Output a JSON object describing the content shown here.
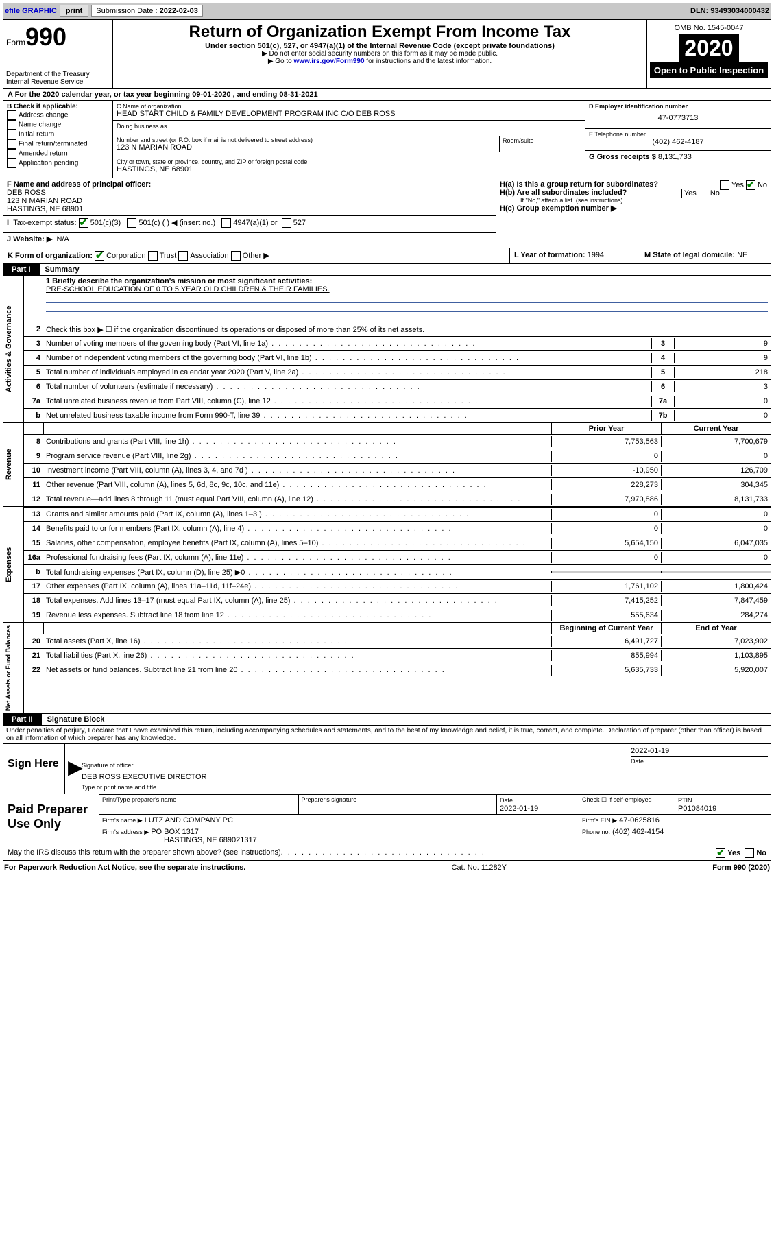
{
  "colors": {
    "link": "#0000cc",
    "check": "#008000",
    "rule": "#4060a0"
  },
  "topbar": {
    "efile_link": "efile GRAPHIC",
    "print_btn": "print",
    "sub_date_label": "Submission Date :",
    "sub_date": "2022-02-03",
    "dln_label": "DLN:",
    "dln": "93493034000432"
  },
  "header": {
    "form_label": "Form",
    "form_num": "990",
    "dept": "Department of the Treasury",
    "irs": "Internal Revenue Service",
    "title": "Return of Organization Exempt From Income Tax",
    "sub1": "Under section 501(c), 527, or 4947(a)(1) of the Internal Revenue Code (except private foundations)",
    "sub2": "▶ Do not enter social security numbers on this form as it may be made public.",
    "sub3_pre": "▶ Go to ",
    "sub3_link": "www.irs.gov/Form990",
    "sub3_post": " for instructions and the latest information.",
    "omb": "OMB No. 1545-0047",
    "year": "2020",
    "open": "Open to Public Inspection"
  },
  "rowA": "A   For the 2020 calendar year, or tax year beginning 09-01-2020    , and ending 08-31-2021",
  "colB": {
    "title": "B Check if applicable:",
    "items": [
      "Address change",
      "Name change",
      "Initial return",
      "Final return/terminated",
      "Amended return",
      "Application pending"
    ]
  },
  "colC": {
    "name_label": "C Name of organization",
    "name": "HEAD START CHILD & FAMILY DEVELOPMENT PROGRAM INC C/O DEB ROSS",
    "dba_label": "Doing business as",
    "dba": "",
    "addr_label": "Number and street (or P.O. box if mail is not delivered to street address)",
    "room_label": "Room/suite",
    "addr": "123 N MARIAN ROAD",
    "city_label": "City or town, state or province, country, and ZIP or foreign postal code",
    "city": "HASTINGS, NE  68901"
  },
  "colD": {
    "ein_label": "D Employer identification number",
    "ein": "47-0773713",
    "phone_label": "E Telephone number",
    "phone": "(402) 462-4187",
    "gross_label": "G Gross receipts $",
    "gross": "8,131,733"
  },
  "colF": {
    "label": "F  Name and address of principal officer:",
    "name": "DEB ROSS",
    "addr1": "123 N MARIAN ROAD",
    "addr2": "HASTINGS, NE  68901"
  },
  "rowH": {
    "ha": "H(a)  Is this a group return for subordinates?",
    "hb": "H(b)  Are all subordinates included?",
    "hb_note": "If \"No,\" attach a list. (see instructions)",
    "hc": "H(c)  Group exemption number ▶",
    "yes": "Yes",
    "no": "No"
  },
  "rowI": {
    "label": "Tax-exempt status:",
    "c3": "501(c)(3)",
    "c": "501(c) (  ) ◀ (insert no.)",
    "a1": "4947(a)(1) or",
    "s527": "527"
  },
  "rowJ": {
    "label": "J   Website: ▶",
    "val": "N/A"
  },
  "rowK": {
    "label": "K Form of organization:",
    "corp": "Corporation",
    "trust": "Trust",
    "assoc": "Association",
    "other": "Other ▶"
  },
  "rowL": {
    "label": "L Year of formation:",
    "val": "1994"
  },
  "rowM": {
    "label": "M State of legal domicile:",
    "val": "NE"
  },
  "part1": {
    "tag": "Part I",
    "title": "Summary"
  },
  "summary": {
    "q1_label": "1   Briefly describe the organization's mission or most significant activities:",
    "q1_val": "PRE-SCHOOL EDUCATION OF 0 TO 5 YEAR OLD CHILDREN & THEIR FAMILIES.",
    "q2": "Check this box ▶ ☐  if the organization discontinued its operations or disposed of more than 25% of its net assets.",
    "lines_ag": [
      {
        "n": "3",
        "t": "Number of voting members of the governing body (Part VI, line 1a)",
        "r": "3",
        "v": "9"
      },
      {
        "n": "4",
        "t": "Number of independent voting members of the governing body (Part VI, line 1b)",
        "r": "4",
        "v": "9"
      },
      {
        "n": "5",
        "t": "Total number of individuals employed in calendar year 2020 (Part V, line 2a)",
        "r": "5",
        "v": "218"
      },
      {
        "n": "6",
        "t": "Total number of volunteers (estimate if necessary)",
        "r": "6",
        "v": "3"
      },
      {
        "n": "7a",
        "t": "Total unrelated business revenue from Part VIII, column (C), line 12",
        "r": "7a",
        "v": "0"
      },
      {
        "n": "b",
        "t": "Net unrelated business taxable income from Form 990-T, line 39",
        "r": "7b",
        "v": "0"
      }
    ]
  },
  "revhead": {
    "prior": "Prior Year",
    "current": "Current Year"
  },
  "revenue": [
    {
      "n": "8",
      "t": "Contributions and grants (Part VIII, line 1h)",
      "p": "7,753,563",
      "c": "7,700,679"
    },
    {
      "n": "9",
      "t": "Program service revenue (Part VIII, line 2g)",
      "p": "0",
      "c": "0"
    },
    {
      "n": "10",
      "t": "Investment income (Part VIII, column (A), lines 3, 4, and 7d )",
      "p": "-10,950",
      "c": "126,709"
    },
    {
      "n": "11",
      "t": "Other revenue (Part VIII, column (A), lines 5, 6d, 8c, 9c, 10c, and 11e)",
      "p": "228,273",
      "c": "304,345"
    },
    {
      "n": "12",
      "t": "Total revenue—add lines 8 through 11 (must equal Part VIII, column (A), line 12)",
      "p": "7,970,886",
      "c": "8,131,733"
    }
  ],
  "expenses": [
    {
      "n": "13",
      "t": "Grants and similar amounts paid (Part IX, column (A), lines 1–3 )",
      "p": "0",
      "c": "0"
    },
    {
      "n": "14",
      "t": "Benefits paid to or for members (Part IX, column (A), line 4)",
      "p": "0",
      "c": "0"
    },
    {
      "n": "15",
      "t": "Salaries, other compensation, employee benefits (Part IX, column (A), lines 5–10)",
      "p": "5,654,150",
      "c": "6,047,035"
    },
    {
      "n": "16a",
      "t": "Professional fundraising fees (Part IX, column (A), line 11e)",
      "p": "0",
      "c": "0"
    },
    {
      "n": "b",
      "t": "Total fundraising expenses (Part IX, column (D), line 25) ▶0",
      "p": "",
      "c": "",
      "grey": true
    },
    {
      "n": "17",
      "t": "Other expenses (Part IX, column (A), lines 11a–11d, 11f–24e)",
      "p": "1,761,102",
      "c": "1,800,424"
    },
    {
      "n": "18",
      "t": "Total expenses. Add lines 13–17 (must equal Part IX, column (A), line 25)",
      "p": "7,415,252",
      "c": "7,847,459"
    },
    {
      "n": "19",
      "t": "Revenue less expenses. Subtract line 18 from line 12",
      "p": "555,634",
      "c": "284,274"
    }
  ],
  "nethead": {
    "prior": "Beginning of Current Year",
    "current": "End of Year"
  },
  "netassets": [
    {
      "n": "20",
      "t": "Total assets (Part X, line 16)",
      "p": "6,491,727",
      "c": "7,023,902"
    },
    {
      "n": "21",
      "t": "Total liabilities (Part X, line 26)",
      "p": "855,994",
      "c": "1,103,895"
    },
    {
      "n": "22",
      "t": "Net assets or fund balances. Subtract line 21 from line 20",
      "p": "5,635,733",
      "c": "5,920,007"
    }
  ],
  "part2": {
    "tag": "Part II",
    "title": "Signature Block"
  },
  "perjury": "Under penalties of perjury, I declare that I have examined this return, including accompanying schedules and statements, and to the best of my knowledge and belief, it is true, correct, and complete. Declaration of preparer (other than officer) is based on all information of which preparer has any knowledge.",
  "sign": {
    "here": "Sign Here",
    "sig_of_officer": "Signature of officer",
    "date_label": "Date",
    "date": "2022-01-19",
    "name_title": "DEB ROSS  EXECUTIVE DIRECTOR",
    "type_label": "Type or print name and title"
  },
  "paid": {
    "label": "Paid Preparer Use Only",
    "h_name": "Print/Type preparer's name",
    "h_sig": "Preparer's signature",
    "h_date": "Date",
    "date": "2022-01-19",
    "h_check": "Check ☐ if self-employed",
    "h_ptin": "PTIN",
    "ptin": "P01084019",
    "firm_name_label": "Firm's name     ▶",
    "firm_name": "LUTZ AND COMPANY PC",
    "firm_ein_label": "Firm's EIN ▶",
    "firm_ein": "47-0625816",
    "firm_addr_label": "Firm's address ▶",
    "firm_addr1": "PO BOX 1317",
    "firm_addr2": "HASTINGS, NE  689021317",
    "phone_label": "Phone no.",
    "phone": "(402) 462-4154"
  },
  "discuss": "May the IRS discuss this return with the preparer shown above? (see instructions)",
  "footer": {
    "left": "For Paperwork Reduction Act Notice, see the separate instructions.",
    "mid": "Cat. No. 11282Y",
    "right": "Form 990 (2020)"
  },
  "vlabels": {
    "ag": "Activities & Governance",
    "rev": "Revenue",
    "exp": "Expenses",
    "net": "Net Assets or Fund Balances"
  }
}
